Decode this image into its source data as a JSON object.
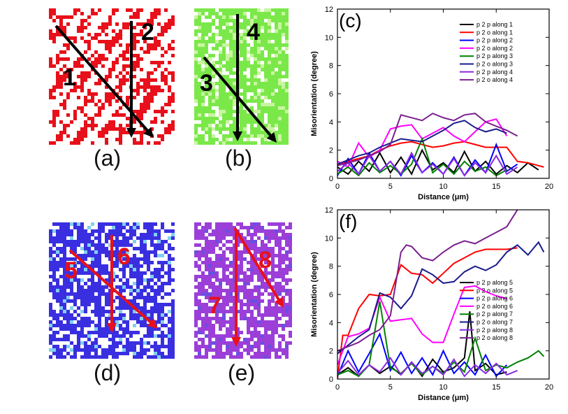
{
  "maps": [
    {
      "label": "(a)",
      "colors": [
        "#e8101a",
        "#ffffff"
      ],
      "lines": [
        {
          "num": "1",
          "color": "#000000"
        },
        {
          "num": "2",
          "color": "#000000"
        }
      ]
    },
    {
      "label": "(b)",
      "colors": [
        "#7be84a",
        "#c8f5a0"
      ],
      "lines": [
        {
          "num": "3",
          "color": "#000000"
        },
        {
          "num": "4",
          "color": "#000000"
        }
      ]
    },
    {
      "label": "(d)",
      "colors": [
        "#3a2fe0",
        "#ffffff"
      ],
      "lines": [
        {
          "num": "5",
          "color": "#e8101a"
        },
        {
          "num": "6",
          "color": "#e8101a"
        }
      ]
    },
    {
      "label": "(e)",
      "colors": [
        "#9b3fd8",
        "#ffffff"
      ],
      "lines": [
        {
          "num": "7",
          "color": "#e8101a"
        },
        {
          "num": "8",
          "color": "#e8101a"
        }
      ]
    }
  ],
  "chart_data": [
    {
      "type": "line",
      "tag": "(c)",
      "xlabel": "Distance (μm)",
      "ylabel": "Misorientation (degree)",
      "xlim": [
        0,
        20
      ],
      "ylim": [
        0,
        12
      ],
      "xticks": [
        0,
        5,
        10,
        15,
        20
      ],
      "yticks": [
        0,
        2,
        4,
        6,
        8,
        10,
        12
      ],
      "legend_position": "top-right",
      "series": [
        {
          "name": "p 2 p along 1",
          "color": "#000000",
          "x": [
            0,
            1,
            2,
            3,
            4,
            5,
            6,
            7,
            8,
            9,
            10,
            11,
            12,
            13,
            14,
            15,
            16,
            17,
            18,
            19
          ],
          "y": [
            0.8,
            0.3,
            1.2,
            0.5,
            1.8,
            0.4,
            1.5,
            0.3,
            2.0,
            0.6,
            1.1,
            0.4,
            1.9,
            0.5,
            1.2,
            0.3,
            0.9,
            0.4,
            1.1,
            0.6
          ]
        },
        {
          "name": "p 2 o along 1",
          "color": "#ff0000",
          "x": [
            0,
            1,
            2,
            3,
            4,
            5,
            6,
            7,
            8,
            9,
            10,
            11,
            12,
            13,
            14,
            15,
            16,
            17,
            18,
            19.5
          ],
          "y": [
            0.9,
            1.2,
            1.4,
            1.6,
            2.0,
            2.3,
            2.5,
            2.6,
            2.4,
            2.2,
            2.3,
            2.5,
            2.6,
            2.4,
            2.2,
            2.2,
            2.2,
            1.2,
            1.1,
            0.8
          ]
        },
        {
          "name": "p 2 p along 2",
          "color": "#0000ff",
          "x": [
            0,
            1,
            2,
            3,
            4,
            5,
            6,
            7,
            8,
            9,
            10,
            11,
            12,
            13,
            14,
            15,
            16,
            17
          ],
          "y": [
            0.2,
            1.4,
            0.3,
            1.8,
            0.5,
            1.2,
            0.2,
            1.6,
            0.4,
            1.1,
            0.3,
            1.5,
            0.2,
            1.3,
            0.4,
            2.4,
            0.5,
            1.0
          ]
        },
        {
          "name": "p 2 o along 2",
          "color": "#ff00ff",
          "x": [
            0,
            1,
            2,
            3,
            4,
            5,
            6,
            7,
            8,
            9,
            10,
            11,
            12,
            13,
            14,
            15,
            16
          ],
          "y": [
            1.2,
            0.8,
            2.5,
            1.5,
            2.0,
            3.5,
            3.7,
            3.8,
            2.8,
            3.2,
            3.6,
            3.0,
            2.6,
            3.3,
            4.0,
            4.2,
            3.0
          ]
        },
        {
          "name": "p 2 p along 3",
          "color": "#008000",
          "x": [
            0,
            1,
            2,
            3,
            4,
            5,
            6,
            7,
            8,
            9,
            10,
            11,
            12,
            13,
            14,
            15,
            16
          ],
          "y": [
            0.3,
            0.8,
            0.2,
            1.1,
            0.4,
            0.9,
            0.3,
            1.0,
            2.8,
            0.4,
            1.0,
            0.3,
            1.2,
            0.5,
            0.8,
            0.2,
            0.6
          ]
        },
        {
          "name": "p 2 o along 3",
          "color": "#1a1a8c",
          "x": [
            0,
            1,
            2,
            3,
            4,
            5,
            6,
            7,
            8,
            9,
            10,
            11,
            12,
            13,
            14,
            15,
            16
          ],
          "y": [
            1.0,
            1.3,
            1.6,
            1.8,
            2.2,
            2.5,
            2.8,
            2.7,
            2.6,
            3.0,
            3.4,
            3.9,
            4.1,
            3.6,
            3.3,
            3.5,
            3.2
          ]
        },
        {
          "name": "p 2 p along 4",
          "color": "#8a2be2",
          "x": [
            0,
            1,
            2,
            3,
            4,
            5,
            6,
            7,
            8,
            9,
            10,
            11,
            12,
            13,
            14,
            15,
            16,
            17
          ],
          "y": [
            0.5,
            1.1,
            0.3,
            1.6,
            0.5,
            1.2,
            0.3,
            1.8,
            0.4,
            1.0,
            0.3,
            1.4,
            0.2,
            1.1,
            0.4,
            1.6,
            0.3,
            0.8
          ]
        },
        {
          "name": "p 2 o along 4",
          "color": "#7b1f8f",
          "x": [
            0,
            1,
            2,
            3,
            4,
            5,
            6,
            7,
            8,
            9,
            10,
            11,
            12,
            13,
            14,
            15,
            16,
            17
          ],
          "y": [
            0.9,
            1.1,
            1.3,
            1.6,
            1.9,
            2.4,
            4.5,
            4.3,
            4.1,
            4.6,
            4.3,
            4.1,
            4.5,
            4.6,
            4.0,
            3.7,
            3.4,
            3.0
          ]
        }
      ]
    },
    {
      "type": "line",
      "tag": "(f)",
      "xlabel": "Distance (μm)",
      "ylabel": "Misorientation (degree)",
      "xlim": [
        0,
        20
      ],
      "ylim": [
        0,
        12
      ],
      "xticks": [
        0,
        5,
        10,
        15,
        20
      ],
      "yticks": [
        0,
        2,
        4,
        6,
        8,
        10,
        12
      ],
      "legend_position": "center-right",
      "series": [
        {
          "name": "p 2 p along 5",
          "color": "#000000",
          "x": [
            0,
            1,
            2,
            3,
            4,
            5,
            6,
            7,
            8,
            9,
            10,
            11,
            12,
            12.5,
            13,
            14,
            15,
            16
          ],
          "y": [
            0.3,
            0.8,
            0.2,
            1.0,
            0.4,
            0.9,
            0.3,
            1.2,
            0.2,
            1.4,
            0.5,
            0.8,
            1.5,
            4.8,
            0.6,
            1.1,
            0.3,
            0.5
          ]
        },
        {
          "name": "p 2 o along 5",
          "color": "#ff0000",
          "x": [
            0,
            0.5,
            1,
            2,
            3,
            4,
            5,
            6,
            7,
            8,
            9,
            10,
            11,
            12,
            13,
            14,
            15,
            16,
            17
          ],
          "y": [
            0,
            3.1,
            3.1,
            5.0,
            6.0,
            5.9,
            6.0,
            8.1,
            7.5,
            7.4,
            6.8,
            7.5,
            8.2,
            8.6,
            9.0,
            9.2,
            9.2,
            9.2,
            9.3
          ]
        },
        {
          "name": "p 2 p along 6",
          "color": "#0000ff",
          "x": [
            0,
            1,
            2,
            3,
            4,
            5,
            6,
            7,
            8,
            9,
            10,
            11,
            12,
            13,
            14,
            15,
            16
          ],
          "y": [
            0.2,
            2.0,
            0.5,
            1.8,
            3.2,
            0.6,
            1.9,
            0.4,
            1.5,
            0.3,
            2.0,
            0.4,
            1.2,
            0.3,
            1.7,
            0.2,
            1.0
          ]
        },
        {
          "name": "p 2 o along 6",
          "color": "#ff00ff",
          "x": [
            0,
            1,
            2,
            3,
            4,
            5,
            6,
            7,
            8,
            9,
            10,
            11,
            12,
            13,
            14,
            15,
            16
          ],
          "y": [
            1.0,
            3.0,
            3.2,
            3.6,
            5.8,
            4.1,
            4.2,
            4.3,
            3.2,
            2.6,
            2.6,
            4.6,
            6.5,
            6.6,
            6.2,
            5.9,
            5.7
          ]
        },
        {
          "name": "p 2 p along 7",
          "color": "#008000",
          "x": [
            0,
            1,
            2,
            3,
            4,
            5,
            6,
            7,
            8,
            9,
            10,
            11,
            12,
            13,
            14,
            15,
            16,
            17,
            18,
            19,
            19.5
          ],
          "y": [
            0.3,
            0.6,
            0.2,
            1.0,
            5.5,
            0.8,
            0.4,
            1.1,
            0.3,
            0.9,
            0.4,
            1.2,
            0.5,
            2.9,
            0.6,
            1.0,
            0.8,
            1.2,
            1.5,
            2.0,
            1.6
          ]
        },
        {
          "name": "p 2 o along 7",
          "color": "#1a1a8c",
          "x": [
            0,
            1,
            2,
            3,
            4,
            5,
            6,
            7,
            8,
            9,
            10,
            11,
            12,
            13,
            14,
            15,
            16,
            17,
            18,
            19,
            19.5
          ],
          "y": [
            1.8,
            2.4,
            3.0,
            3.5,
            6.1,
            5.8,
            5.0,
            5.9,
            7.8,
            7.4,
            6.8,
            6.9,
            7.6,
            8.0,
            7.7,
            8.1,
            9.0,
            9.5,
            8.8,
            9.7,
            9.0
          ]
        },
        {
          "name": "p 2 p along 8",
          "color": "#8a2be2",
          "x": [
            0,
            1,
            2,
            3,
            4,
            5,
            6,
            7,
            8,
            9,
            10,
            11,
            12,
            13,
            14,
            15,
            16,
            17
          ],
          "y": [
            0.4,
            1.3,
            0.3,
            1.0,
            0.5,
            1.5,
            0.3,
            1.2,
            0.4,
            0.9,
            0.3,
            1.4,
            0.2,
            1.0,
            0.4,
            1.1,
            0.3,
            0.6
          ]
        },
        {
          "name": "p 2 o along 8",
          "color": "#7b1f8f",
          "x": [
            0,
            1,
            2,
            3,
            4,
            5,
            6,
            6.5,
            7,
            8,
            9,
            10,
            11,
            12,
            13,
            14,
            15,
            16,
            17
          ],
          "y": [
            2.0,
            2.3,
            2.6,
            3.1,
            3.5,
            4.5,
            9.0,
            9.5,
            9.4,
            8.6,
            8.4,
            9.0,
            9.5,
            9.8,
            9.6,
            10.0,
            10.4,
            10.8,
            12.0
          ]
        }
      ]
    }
  ]
}
